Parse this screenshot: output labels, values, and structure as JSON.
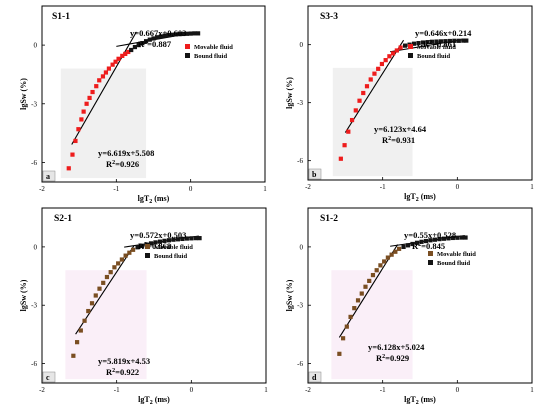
{
  "chart_data": [
    {
      "type": "scatter",
      "label": "a",
      "title": "S1-1",
      "xlabel": "lgT",
      "xlabel_sub": "2",
      "xlabel_unit": " (ms)",
      "ylabel": "lgSw (%)",
      "xlim": [
        -2,
        1
      ],
      "ylim": [
        -7,
        2
      ],
      "xticks": [
        -2,
        -1,
        0,
        1
      ],
      "yticks": [
        -6,
        -3,
        0
      ],
      "legend": [
        "Movable fluid",
        "Bound fluid"
      ],
      "legend_position": "top-right",
      "colors": {
        "movable": "#ee1c1c",
        "bound": "#141414",
        "line": "#000000",
        "band": "#dddddd"
      },
      "eq_upper": {
        "text": "y=0.667x+0.603",
        "r2": "=0.887"
      },
      "eq_lower": {
        "text": "y=6.619x+5.508",
        "r2": "=0.926"
      },
      "fit_upper": {
        "slope": 0.667,
        "intercept": 0.603,
        "x": [
          -1.0,
          0.1
        ]
      },
      "fit_lower": {
        "slope": 6.619,
        "intercept": 5.508,
        "x": [
          -1.6,
          -0.73
        ]
      },
      "series": [
        {
          "name": "Movable fluid",
          "x": [
            -1.64,
            -1.59,
            -1.55,
            -1.51,
            -1.47,
            -1.44,
            -1.4,
            -1.36,
            -1.32,
            -1.27,
            -1.23,
            -1.18,
            -1.14,
            -1.1,
            -1.05,
            -1.01,
            -0.97,
            -0.92,
            -0.88,
            -0.84
          ],
          "y": [
            -6.3,
            -5.6,
            -4.9,
            -4.3,
            -3.8,
            -3.4,
            -3.0,
            -2.7,
            -2.4,
            -2.1,
            -1.8,
            -1.6,
            -1.4,
            -1.2,
            -1.0,
            -0.85,
            -0.7,
            -0.55,
            -0.45,
            -0.35
          ]
        },
        {
          "name": "Bound fluid",
          "x": [
            -0.8,
            -0.75,
            -0.7,
            -0.65,
            -0.6,
            -0.55,
            -0.5,
            -0.45,
            -0.4,
            -0.35,
            -0.3,
            -0.25,
            -0.2,
            -0.15,
            -0.1,
            -0.05,
            0.0,
            0.05,
            0.1
          ],
          "y": [
            -0.25,
            -0.1,
            0.0,
            0.1,
            0.2,
            0.28,
            0.34,
            0.4,
            0.44,
            0.48,
            0.51,
            0.53,
            0.55,
            0.56,
            0.57,
            0.58,
            0.59,
            0.6,
            0.6
          ]
        }
      ]
    },
    {
      "type": "scatter",
      "label": "b",
      "title": "S3-3",
      "xlabel": "lgT",
      "xlabel_sub": "2",
      "xlabel_unit": " (ms)",
      "ylabel": "lgSw (%)",
      "xlim": [
        -2,
        1
      ],
      "ylim": [
        -7,
        2
      ],
      "xticks": [
        -2,
        -1,
        0,
        1
      ],
      "yticks": [
        -6,
        -3,
        0
      ],
      "legend": [
        "Movable fluid",
        "Bound fluid"
      ],
      "legend_position": "top-right",
      "colors": {
        "movable": "#ee1c1c",
        "bound": "#141414",
        "line": "#000000",
        "band": "#dddddd"
      },
      "eq_upper": {
        "text": "y=0.646x+0.214",
        "r2": "=0.861"
      },
      "eq_lower": {
        "text": "y=6.123x+4.64",
        "r2": "=0.931"
      },
      "fit_upper": {
        "slope": 0.646,
        "intercept": 0.214,
        "x": [
          -0.9,
          0.1
        ]
      },
      "fit_lower": {
        "slope": 6.123,
        "intercept": 4.64,
        "x": [
          -1.5,
          -0.72
        ]
      },
      "series": [
        {
          "name": "Movable fluid",
          "x": [
            -1.56,
            -1.51,
            -1.46,
            -1.41,
            -1.36,
            -1.31,
            -1.26,
            -1.21,
            -1.16,
            -1.11,
            -1.06,
            -1.01,
            -0.96,
            -0.91,
            -0.86,
            -0.81,
            -0.76
          ],
          "y": [
            -5.9,
            -5.2,
            -4.5,
            -3.9,
            -3.4,
            -2.9,
            -2.5,
            -2.15,
            -1.8,
            -1.5,
            -1.25,
            -1.0,
            -0.8,
            -0.6,
            -0.45,
            -0.3,
            -0.15
          ]
        },
        {
          "name": "Bound fluid",
          "x": [
            -0.7,
            -0.64,
            -0.58,
            -0.52,
            -0.46,
            -0.4,
            -0.34,
            -0.28,
            -0.22,
            -0.16,
            -0.1,
            -0.04,
            0.02,
            0.08,
            0.12
          ],
          "y": [
            -0.05,
            0.0,
            0.05,
            0.08,
            0.11,
            0.13,
            0.15,
            0.16,
            0.17,
            0.18,
            0.19,
            0.2,
            0.2,
            0.21,
            0.21
          ]
        }
      ]
    },
    {
      "type": "scatter",
      "label": "c",
      "title": "S2-1",
      "xlabel": "lgT",
      "xlabel_sub": "2",
      "xlabel_unit": " (ms)",
      "ylabel": "lgSw (%)",
      "xlim": [
        -2,
        1
      ],
      "ylim": [
        -7,
        2
      ],
      "xticks": [
        -2,
        -1,
        0,
        1
      ],
      "yticks": [
        -6,
        -3,
        0
      ],
      "legend": [
        "Movable fluid",
        "Bound fluid"
      ],
      "legend_position": "top-right",
      "colors": {
        "movable": "#7a4e22",
        "bound": "#141414",
        "line": "#000000",
        "band": "#f5dcf0"
      },
      "eq_upper": {
        "text": "y=0.572x+0.503",
        "r2": "=0.868"
      },
      "eq_lower": {
        "text": "y=5.819x+4.53",
        "r2": "=0.922"
      },
      "fit_upper": {
        "slope": 0.572,
        "intercept": 0.503,
        "x": [
          -0.9,
          0.1
        ]
      },
      "fit_lower": {
        "slope": 5.819,
        "intercept": 4.53,
        "x": [
          -1.55,
          -0.77
        ]
      },
      "series": [
        {
          "name": "Movable fluid",
          "x": [
            -1.58,
            -1.53,
            -1.48,
            -1.43,
            -1.38,
            -1.33,
            -1.28,
            -1.23,
            -1.18,
            -1.13,
            -1.08,
            -1.03,
            -0.98,
            -0.93,
            -0.88,
            -0.83,
            -0.78
          ],
          "y": [
            -5.6,
            -4.9,
            -4.3,
            -3.8,
            -3.3,
            -2.9,
            -2.5,
            -2.15,
            -1.85,
            -1.55,
            -1.3,
            -1.05,
            -0.85,
            -0.65,
            -0.45,
            -0.3,
            -0.15
          ]
        },
        {
          "name": "Bound fluid",
          "x": [
            -0.72,
            -0.66,
            -0.6,
            -0.54,
            -0.48,
            -0.42,
            -0.36,
            -0.3,
            -0.24,
            -0.18,
            -0.12,
            -0.06,
            0.0,
            0.06,
            0.11
          ],
          "y": [
            -0.02,
            0.05,
            0.12,
            0.18,
            0.23,
            0.27,
            0.31,
            0.34,
            0.37,
            0.39,
            0.41,
            0.43,
            0.44,
            0.45,
            0.45
          ]
        }
      ]
    },
    {
      "type": "scatter",
      "label": "d",
      "title": "S1-2",
      "xlabel": "lgT",
      "xlabel_sub": "2",
      "xlabel_unit": " (ms)",
      "ylabel": "lgSw (%)",
      "xlim": [
        -2,
        1
      ],
      "ylim": [
        -7,
        2
      ],
      "xticks": [
        -2,
        -1,
        0,
        1
      ],
      "yticks": [
        -6,
        -3,
        0
      ],
      "legend": [
        "Movable fluid",
        "Bound fluid"
      ],
      "legend_position": "top-right",
      "colors": {
        "movable": "#7a4e22",
        "bound": "#141414",
        "line": "#000000",
        "band": "#f5dcf0"
      },
      "eq_upper": {
        "text": "y=0.55x+0.528",
        "r2": "=0.845"
      },
      "eq_lower": {
        "text": "y=6.128x+5.024",
        "r2": "=0.929"
      },
      "fit_upper": {
        "slope": 0.55,
        "intercept": 0.528,
        "x": [
          -0.9,
          0.1
        ]
      },
      "fit_lower": {
        "slope": 6.128,
        "intercept": 5.024,
        "x": [
          -1.58,
          -0.8
        ]
      },
      "series": [
        {
          "name": "Movable fluid",
          "x": [
            -1.58,
            -1.53,
            -1.48,
            -1.43,
            -1.38,
            -1.33,
            -1.28,
            -1.23,
            -1.18,
            -1.13,
            -1.08,
            -1.03,
            -0.98,
            -0.93,
            -0.88,
            -0.83,
            -0.78
          ],
          "y": [
            -5.5,
            -4.7,
            -4.1,
            -3.6,
            -3.15,
            -2.75,
            -2.4,
            -2.05,
            -1.75,
            -1.45,
            -1.2,
            -0.95,
            -0.75,
            -0.55,
            -0.4,
            -0.25,
            -0.1
          ]
        },
        {
          "name": "Bound fluid",
          "x": [
            -0.72,
            -0.66,
            -0.6,
            -0.54,
            -0.48,
            -0.42,
            -0.36,
            -0.3,
            -0.24,
            -0.18,
            -0.12,
            -0.06,
            0.0,
            0.06,
            0.11
          ],
          "y": [
            0.0,
            0.08,
            0.15,
            0.21,
            0.26,
            0.3,
            0.34,
            0.37,
            0.4,
            0.42,
            0.44,
            0.46,
            0.47,
            0.48,
            0.48
          ]
        }
      ]
    }
  ]
}
